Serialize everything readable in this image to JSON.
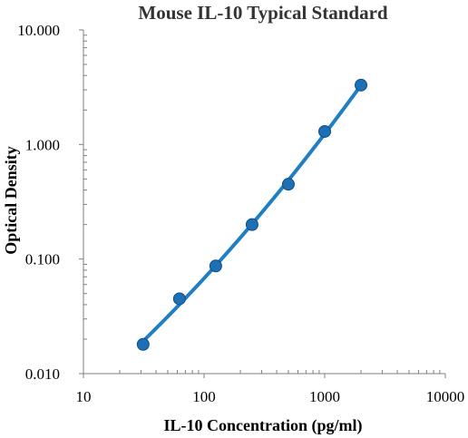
{
  "chart_data": {
    "type": "scatter",
    "title": "Mouse IL-10 Typical Standard",
    "xlabel": "IL-10 Concentration (pg/ml)",
    "ylabel": "Optical Density",
    "x_scale": "log",
    "y_scale": "log",
    "xlim": [
      10,
      10000
    ],
    "ylim": [
      0.01,
      10
    ],
    "x_ticks": [
      "10",
      "100",
      "1000",
      "10000"
    ],
    "y_ticks": [
      "0.010",
      "0.100",
      "1.000",
      "10.000"
    ],
    "grid": false,
    "legend": "none",
    "series": [
      {
        "x": [
          31.25,
          62.5,
          125,
          250,
          500,
          1000,
          2000
        ],
        "y": [
          0.018,
          0.045,
          0.087,
          0.2,
          0.45,
          1.3,
          3.3
        ]
      }
    ],
    "colors": {
      "marker": "#1f6fb5",
      "marker_edge": "#0b4e8a",
      "line": "#1f7fc2"
    }
  }
}
